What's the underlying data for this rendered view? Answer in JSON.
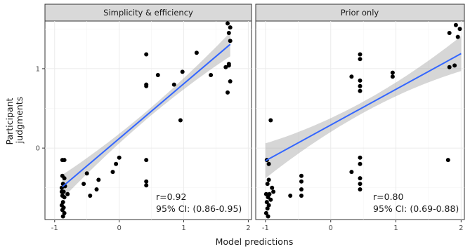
{
  "chart_data": {
    "type": "scatter",
    "xlabel": "Model predictions",
    "ylabel": "Participant judgments",
    "ylabel_lines": [
      "Participant",
      "judgments"
    ],
    "xlim": [
      -1.15,
      2.05
    ],
    "ylim": [
      -0.9,
      1.6
    ],
    "x_ticks": [
      -1,
      0,
      1,
      2
    ],
    "x_tick_labels": [
      "-1",
      "0",
      "1",
      "2"
    ],
    "y_ticks": [
      0,
      1
    ],
    "y_tick_labels": [
      "0",
      "1"
    ],
    "grid": true,
    "colors": {
      "fit_line": "#3366ff",
      "ci_band": "#999999",
      "points": "#000000",
      "strip": "#d9d9d9"
    },
    "panels": [
      {
        "title": "Simplicity & efficiency",
        "annotation_r": "r=0.92",
        "annotation_ci": "95% CI: (0.86-0.95)",
        "fit": {
          "intercept": 0.12,
          "slope": 0.69,
          "x_range": [
            -0.88,
            1.72
          ]
        },
        "points": [
          [
            -0.85,
            -0.15
          ],
          [
            -0.88,
            -0.15
          ],
          [
            -0.88,
            -0.35
          ],
          [
            -0.85,
            -0.38
          ],
          [
            -0.87,
            -0.45
          ],
          [
            -0.89,
            -0.5
          ],
          [
            -0.86,
            -0.55
          ],
          [
            -0.88,
            -0.6
          ],
          [
            -0.85,
            -0.62
          ],
          [
            -0.87,
            -0.68
          ],
          [
            -0.89,
            -0.72
          ],
          [
            -0.86,
            -0.75
          ],
          [
            -0.88,
            -0.78
          ],
          [
            -0.85,
            -0.82
          ],
          [
            -0.87,
            -0.86
          ],
          [
            -0.89,
            -0.55
          ],
          [
            -0.84,
            -0.48
          ],
          [
            -0.8,
            -0.58
          ],
          [
            -0.55,
            -0.45
          ],
          [
            -0.5,
            -0.32
          ],
          [
            -0.45,
            -0.6
          ],
          [
            -0.35,
            -0.52
          ],
          [
            -0.32,
            -0.4
          ],
          [
            -0.1,
            -0.3
          ],
          [
            -0.05,
            -0.2
          ],
          [
            0.0,
            -0.12
          ],
          [
            0.42,
            -0.15
          ],
          [
            0.42,
            -0.42
          ],
          [
            0.42,
            -0.47
          ],
          [
            0.42,
            0.8
          ],
          [
            0.42,
            0.78
          ],
          [
            0.42,
            1.18
          ],
          [
            0.6,
            0.92
          ],
          [
            0.85,
            0.8
          ],
          [
            0.98,
            0.96
          ],
          [
            1.2,
            1.2
          ],
          [
            0.95,
            0.35
          ],
          [
            1.42,
            0.92
          ],
          [
            1.65,
            1.02
          ],
          [
            1.7,
            1.04
          ],
          [
            1.7,
            1.06
          ],
          [
            1.68,
            0.7
          ],
          [
            1.72,
            0.84
          ],
          [
            1.72,
            1.35
          ],
          [
            1.7,
            1.45
          ],
          [
            1.72,
            1.52
          ],
          [
            1.68,
            1.57
          ]
        ]
      },
      {
        "title": "Prior only",
        "annotation_r": "r=0.80",
        "annotation_ci": "95% CI: (0.69-0.88)",
        "fit": {
          "intercept": 0.29,
          "slope": 0.45,
          "x_range": [
            -1.0,
            2.0
          ]
        },
        "points": [
          [
            -0.98,
            -0.15
          ],
          [
            -0.95,
            -0.2
          ],
          [
            -0.95,
            -0.4
          ],
          [
            -0.97,
            -0.45
          ],
          [
            -0.99,
            -0.58
          ],
          [
            -0.96,
            -0.62
          ],
          [
            -0.98,
            -0.68
          ],
          [
            -0.95,
            -0.72
          ],
          [
            -0.97,
            -0.76
          ],
          [
            -0.99,
            -0.82
          ],
          [
            -0.96,
            -0.86
          ],
          [
            -0.94,
            -0.58
          ],
          [
            -0.92,
            -0.65
          ],
          [
            -0.9,
            -0.5
          ],
          [
            -0.88,
            -0.55
          ],
          [
            -0.92,
            0.35
          ],
          [
            -0.62,
            -0.6
          ],
          [
            -0.45,
            -0.35
          ],
          [
            -0.45,
            -0.42
          ],
          [
            -0.45,
            -0.52
          ],
          [
            -0.45,
            -0.6
          ],
          [
            0.32,
            -0.3
          ],
          [
            0.32,
            0.9
          ],
          [
            0.45,
            -0.12
          ],
          [
            0.45,
            -0.2
          ],
          [
            0.45,
            -0.38
          ],
          [
            0.45,
            -0.45
          ],
          [
            0.45,
            -0.52
          ],
          [
            0.45,
            0.72
          ],
          [
            0.45,
            0.78
          ],
          [
            0.45,
            0.85
          ],
          [
            0.45,
            1.12
          ],
          [
            0.45,
            1.18
          ],
          [
            0.95,
            0.9
          ],
          [
            0.95,
            0.95
          ],
          [
            1.8,
            -0.15
          ],
          [
            1.82,
            1.02
          ],
          [
            1.82,
            1.45
          ],
          [
            1.9,
            1.04
          ],
          [
            1.92,
            1.55
          ],
          [
            1.95,
            1.4
          ],
          [
            1.98,
            1.5
          ]
        ]
      }
    ]
  }
}
